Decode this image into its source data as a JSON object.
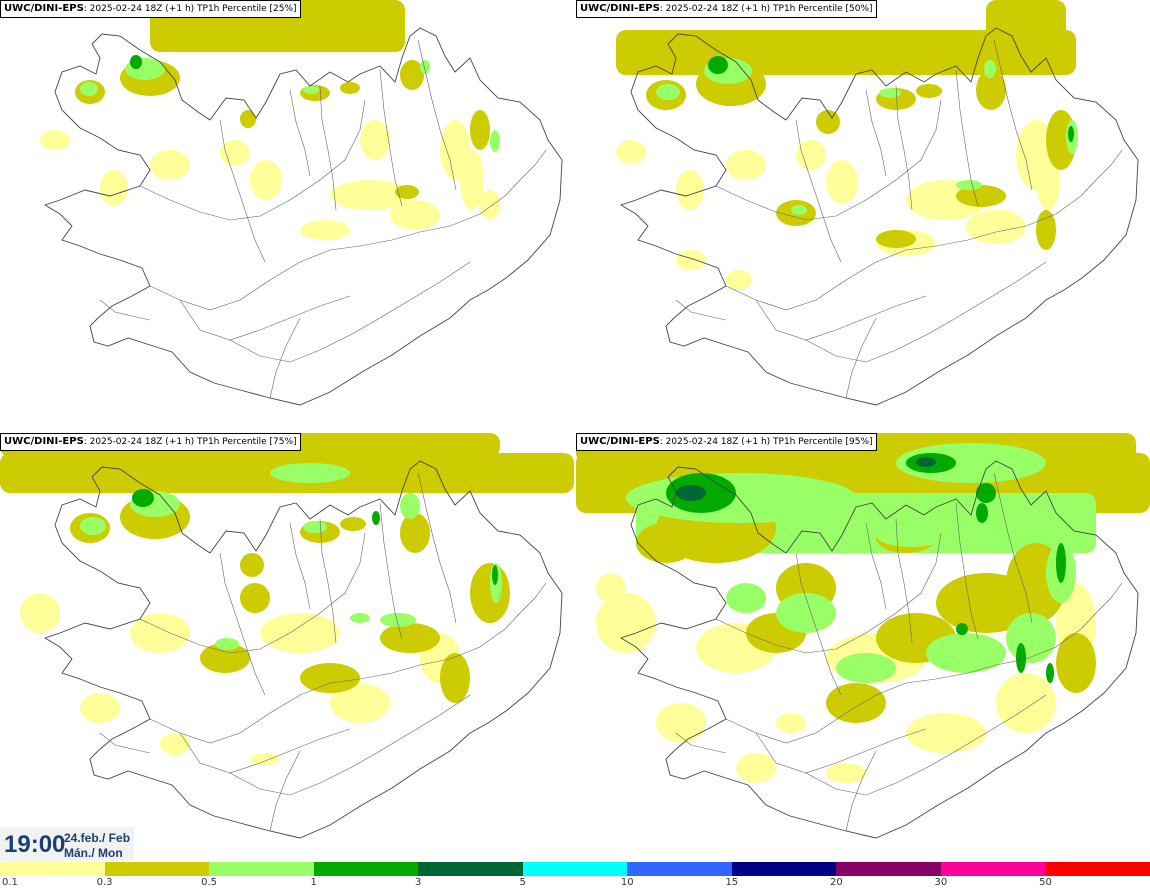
{
  "panels": [
    {
      "source": "UWC/DINI-EPS",
      "run": ": 2025-02-24 18Z (+1 h) ",
      "field": "TP1h Percentile [25%]"
    },
    {
      "source": "UWC/DINI-EPS",
      "run": ": 2025-02-24 18Z (+1 h) ",
      "field": "TP1h Percentile [50%]"
    },
    {
      "source": "UWC/DINI-EPS",
      "run": ": 2025-02-24 18Z (+1 h) ",
      "field": "TP1h Percentile [75%]"
    },
    {
      "source": "UWC/DINI-EPS",
      "run": ": 2025-02-24 18Z (+1 h) ",
      "field": "TP1h Percentile [95%]"
    }
  ],
  "time": {
    "hour": "19:00",
    "date_line1": "24.feb./ Feb",
    "date_line2": "Mán./ Mon"
  },
  "legend": {
    "colors": [
      "#ffff9a",
      "#cccc00",
      "#99ff66",
      "#00aa00",
      "#006633",
      "#00ffff",
      "#3366ff",
      "#000088",
      "#880066",
      "#ff0099",
      "#ff0000"
    ],
    "labels": [
      "0.1",
      "0.3",
      "0.5",
      "1",
      "3",
      "5",
      "10",
      "15",
      "20",
      "30",
      "50"
    ]
  }
}
